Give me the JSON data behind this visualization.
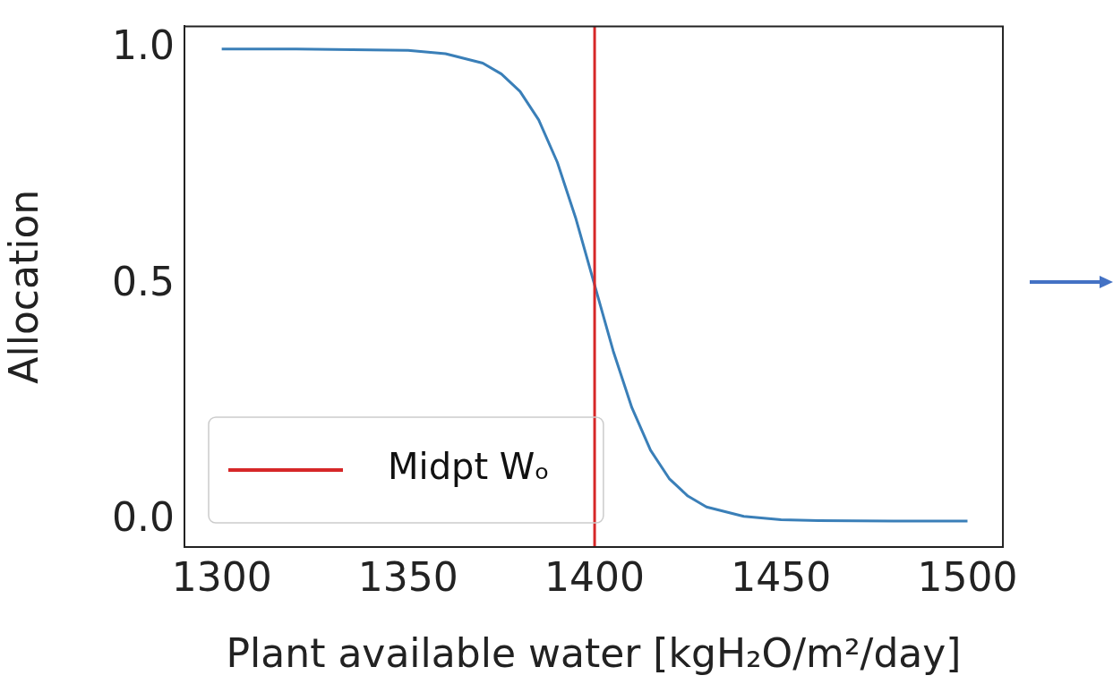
{
  "chart_data": {
    "type": "line",
    "xlabel": "Plant available water [kgH₂O/m²/day]",
    "ylabel": "Allocation",
    "xlim": [
      1290,
      1509.5
    ],
    "ylim": [
      -0.055,
      1.048
    ],
    "xticks": [
      1300,
      1350,
      1400,
      1450,
      1500
    ],
    "yticks": [
      {
        "value": 0,
        "label": "0.0"
      },
      {
        "value": 0.5,
        "label": "0.5"
      },
      {
        "value": 1,
        "label": "1.0"
      }
    ],
    "grid": false,
    "legend": "bottom left",
    "marker": "none",
    "line_style": "solid",
    "series": [
      {
        "color": "#3a7fb8",
        "x": [
          1300,
          1320,
          1340,
          1350,
          1360,
          1365,
          1370,
          1375,
          1380,
          1385,
          1390,
          1395,
          1400,
          1405,
          1410,
          1415,
          1420,
          1425,
          1430,
          1440,
          1450,
          1460,
          1480,
          1500
        ],
        "values": [
          1,
          1,
          0.998,
          0.997,
          0.99,
          0.98,
          0.97,
          0.947,
          0.91,
          0.85,
          0.76,
          0.64,
          0.5,
          0.36,
          0.24,
          0.15,
          0.09,
          0.053,
          0.03,
          0.01,
          0.003,
          0.001,
          0,
          0
        ]
      }
    ],
    "ref_lines": [
      {
        "axis": "x",
        "value": 1400,
        "label": "Midpt Wₒ",
        "color": "#d62728",
        "line_style": "solid"
      }
    ]
  }
}
